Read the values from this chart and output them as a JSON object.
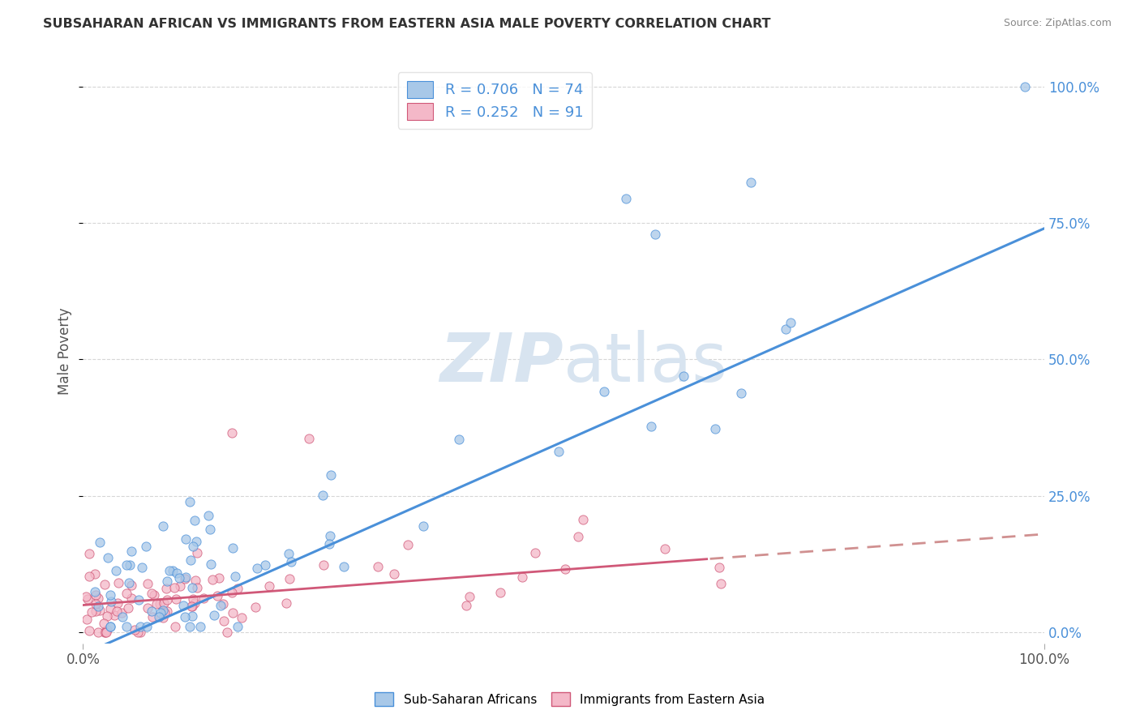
{
  "title": "SUBSAHARAN AFRICAN VS IMMIGRANTS FROM EASTERN ASIA MALE POVERTY CORRELATION CHART",
  "source": "Source: ZipAtlas.com",
  "ylabel": "Male Poverty",
  "xlim": [
    0.0,
    1.0
  ],
  "ylim": [
    -0.02,
    1.05
  ],
  "x_tick_labels": [
    "0.0%",
    "100.0%"
  ],
  "y_tick_labels": [
    "0.0%",
    "25.0%",
    "50.0%",
    "75.0%",
    "100.0%"
  ],
  "y_tick_positions": [
    0.0,
    0.25,
    0.5,
    0.75,
    1.0
  ],
  "series1_color": "#a8c8e8",
  "series1_edge": "#4a90d9",
  "series2_color": "#f4b8c8",
  "series2_edge": "#d05878",
  "trendline1_color": "#4a90d9",
  "trendline2_color": "#d05878",
  "trendline2_dash_color": "#d09090",
  "watermark_color": "#d8e4f0",
  "background_color": "#ffffff",
  "grid_color": "#cccccc",
  "blue_r": "0.706",
  "blue_n": "74",
  "pink_r": "0.252",
  "pink_n": "91",
  "legend_r_color": "#4a90d9",
  "legend_n_color": "#4a90d9",
  "title_color": "#333333",
  "source_color": "#888888",
  "ylabel_color": "#555555",
  "tick_color": "#555555",
  "right_tick_color": "#4a90d9"
}
